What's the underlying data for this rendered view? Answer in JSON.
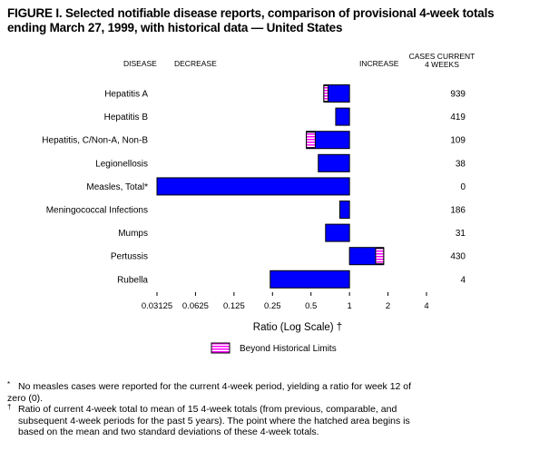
{
  "title_line1": "FIGURE I. Selected notifiable disease reports, comparison of provisional 4-week totals",
  "title_line2": "ending March 27, 1999, with historical data — United States",
  "headers": {
    "disease": "DISEASE",
    "decrease": "DECREASE",
    "increase": "INCREASE",
    "cases_line1": "CASES CURRENT",
    "cases_line2": "4 WEEKS"
  },
  "legend_label": "Beyond Historical Limits",
  "footnotes": {
    "star_mark": "*",
    "star_text_1": "No measles cases were reported for the current 4-week period, yielding a ratio for week 12 of",
    "star_text_2": "zero (0).",
    "dagger_mark": "†",
    "dagger_text_1": "Ratio of current 4-week total to mean of 15 4-week totals (from previous, comparable, and",
    "dagger_text_2": "subsequent 4-week periods for the past 5 years). The point where the hatched area begins is",
    "dagger_text_3": "based on the mean and two standard deviations of these 4-week totals."
  },
  "colors": {
    "bar": "#0000ff",
    "hatch": "#ff00ff",
    "outline": "#000000"
  },
  "chart_data": {
    "type": "bar",
    "orientation": "horizontal",
    "xscale": "log2",
    "xlabel": "Ratio (Log Scale) †",
    "xlim": [
      0.03125,
      4
    ],
    "xticks": [
      0.03125,
      0.0625,
      0.125,
      0.25,
      0.5,
      1,
      2,
      4
    ],
    "xtick_labels": [
      "0.03125",
      "0.0625",
      "0.125",
      "0.25",
      "0.5",
      "1",
      "2",
      "4"
    ],
    "baseline": 1,
    "categories": [
      "Hepatitis A",
      "Hepatitis B",
      "Hepatitis, C/Non-A, Non-B",
      "Legionellosis",
      "Measles, Total*",
      "Meningococcal Infections",
      "Mumps",
      "Pertussis",
      "Rubella"
    ],
    "ratios": [
      0.63,
      0.78,
      0.46,
      0.57,
      0.03125,
      0.84,
      0.65,
      1.85,
      0.24
    ],
    "hatch_from": [
      0.68,
      null,
      0.54,
      null,
      null,
      null,
      null,
      1.6,
      null
    ],
    "cases_current_4_weeks": [
      "939",
      "419",
      "109",
      "38",
      "0",
      "186",
      "31",
      "430",
      "4"
    ]
  }
}
